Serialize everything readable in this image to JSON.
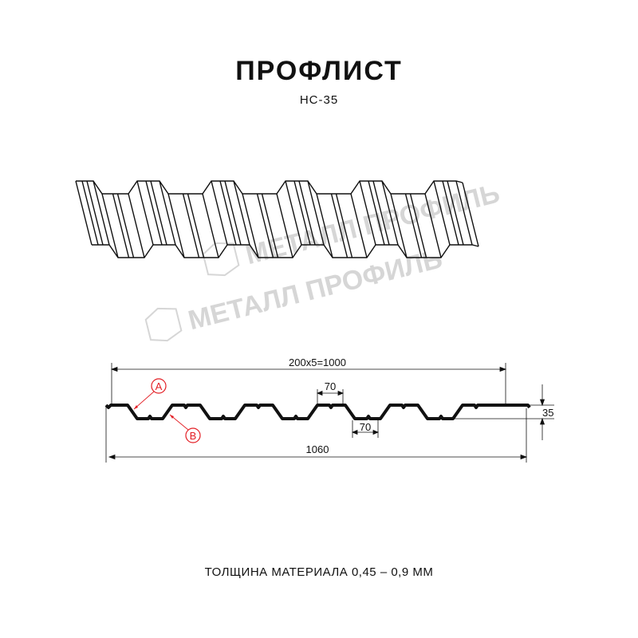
{
  "header": {
    "title": "ПРОФЛИСТ",
    "model": "НС-35"
  },
  "watermark": {
    "text": "МЕТАЛЛ ПРОФИЛЬ"
  },
  "dimensions": {
    "pitch_total": "200x5=1000",
    "top_width": "70",
    "bottom_width": "70",
    "height": "35",
    "overall_width": "1060"
  },
  "markers": {
    "a": "A",
    "b": "B"
  },
  "footer": {
    "thickness": "ТОЛЩИНА МАТЕРИАЛА 0,45 – 0,9 ММ"
  },
  "colors": {
    "line": "#111111",
    "marker": "#e31e24",
    "watermark": "#d6d6d6"
  }
}
